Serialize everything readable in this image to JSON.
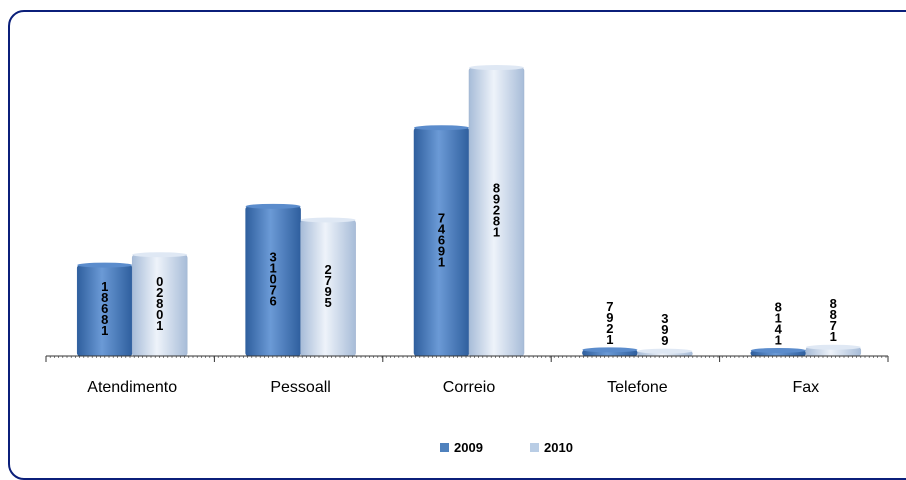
{
  "chart_data": {
    "type": "bar",
    "categories": [
      "Atendimento",
      "Pessoall",
      "Correio",
      "Telefone",
      "Fax"
    ],
    "series": [
      {
        "name": "2009",
        "values": [
          1868,
          3076,
          4691,
          126,
          114
        ],
        "labels": [
          "1\n8\n6\n8\n1",
          "3\n1\n0\n7\n6",
          "7\n4\n6\n9\n1",
          "7\n9\n2\n1",
          "8\n1\n4\n1"
        ],
        "color": "#4f81bd"
      },
      {
        "name": "2010",
        "values": [
          2081,
          2795,
          5928,
          99,
          180
        ],
        "labels": [
          "0\n2\n8\n0\n1",
          "2\n7\n9\n5",
          "8\n9\n2\n8\n1",
          "3\n9\n9",
          "8\n8\n7\n1"
        ],
        "color": "#b9cde5"
      }
    ],
    "xlabel": "",
    "ylabel": "",
    "grid": false,
    "legend": "bottom"
  }
}
